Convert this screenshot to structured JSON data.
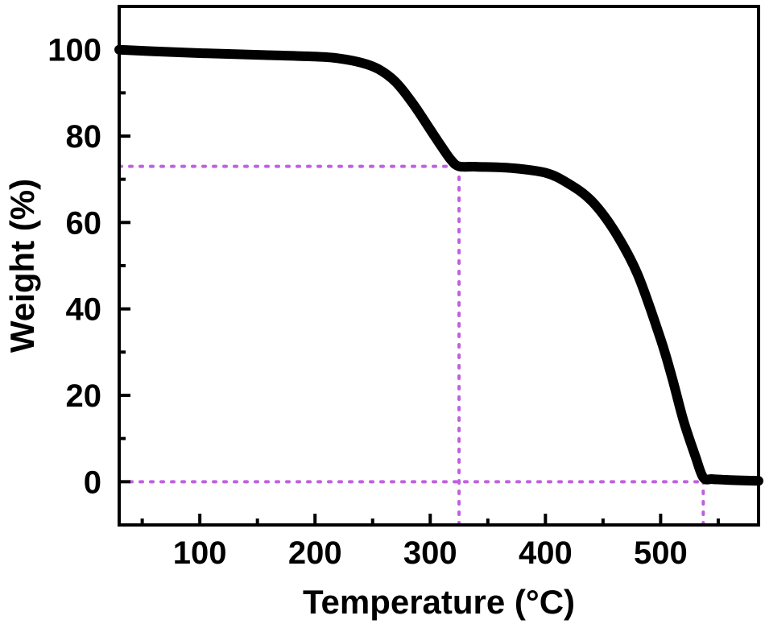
{
  "chart_data": {
    "type": "line",
    "title": "",
    "xlabel": "Temperature (°C)",
    "ylabel": "Weight (%)",
    "xlim": [
      30,
      585
    ],
    "ylim": [
      -10,
      110
    ],
    "x_ticks": [
      100,
      200,
      300,
      400,
      500
    ],
    "y_ticks": [
      0,
      20,
      40,
      60,
      80,
      100
    ],
    "grid": false,
    "legend": "none",
    "colors": {
      "curve": "#000000",
      "guide": "#c060e0"
    },
    "series": [
      {
        "x": [
          30,
          60,
          100,
          150,
          200,
          220,
          240,
          255,
          270,
          285,
          300,
          310,
          318,
          325,
          340,
          370,
          400,
          420,
          440,
          460,
          480,
          500,
          510,
          520,
          530,
          537,
          545,
          560,
          585
        ],
        "y": [
          100,
          99.6,
          99.2,
          98.8,
          98.4,
          98.0,
          97.0,
          95.5,
          92.5,
          87.5,
          81.5,
          77.5,
          74.5,
          73.0,
          72.9,
          72.6,
          71.5,
          69.0,
          65.0,
          58.0,
          48.0,
          33.0,
          24.0,
          14.0,
          6.0,
          1.0,
          0.6,
          0.4,
          0.2
        ]
      }
    ],
    "guide_lines": [
      {
        "type": "horizontal",
        "y": 73,
        "x_from": 30,
        "x_to": 325
      },
      {
        "type": "vertical",
        "x": 325,
        "y_from": -10,
        "y_to": 73
      },
      {
        "type": "horizontal",
        "y": 0,
        "x_from": 30,
        "x_to": 537
      },
      {
        "type": "vertical",
        "x": 537,
        "y_from": -10,
        "y_to": 0
      }
    ]
  }
}
